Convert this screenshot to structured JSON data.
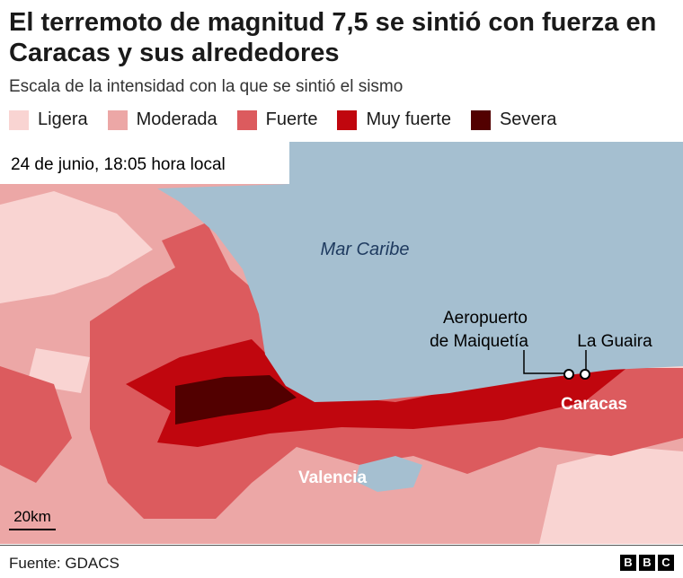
{
  "header": {
    "title": "El terremoto de magnitud 7,5 se sintió con fuerza en Caracas y sus alrededores",
    "subtitle": "Escala de la intensidad con la que se sintió el sismo"
  },
  "legend": [
    {
      "label": "Ligera",
      "color": "#f9d4d2"
    },
    {
      "label": "Moderada",
      "color": "#eca7a6"
    },
    {
      "label": "Fuerte",
      "color": "#dc5b5e"
    },
    {
      "label": "Muy fuerte",
      "color": "#c0060e"
    },
    {
      "label": "Severa",
      "color": "#520000"
    }
  ],
  "map": {
    "timestamp": "24 de junio, 18:05 hora local",
    "sea_label": "Mar Caribe",
    "places": [
      "Aeropuerto de Maiquetía",
      "La Guaira",
      "Caracas",
      "Valencia"
    ],
    "scale": "20km"
  },
  "footer": {
    "source": "Fuente: GDACS",
    "logo": [
      "B",
      "B",
      "C"
    ]
  }
}
